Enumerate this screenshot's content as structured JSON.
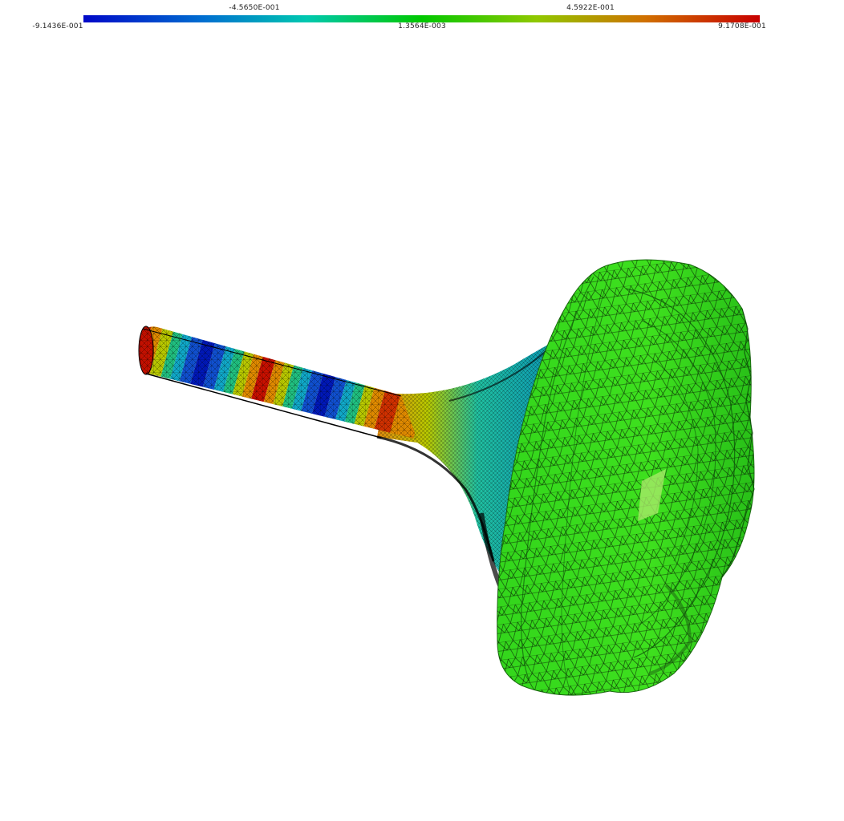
{
  "colorbar": {
    "colormap": [
      "#0008c8",
      "#0070d0",
      "#00c8b0",
      "#00c800",
      "#a0c800",
      "#d07000",
      "#c80000"
    ],
    "labels_top": [
      {
        "text": "-4.5650E-001"
      },
      {
        "text": "4.5922E-001"
      }
    ],
    "labels_bottom": [
      {
        "text": "-9.1436E-001"
      },
      {
        "text": "1.3564E-003"
      },
      {
        "text": "9.1708E-001"
      }
    ],
    "min": -0.91436,
    "max": 0.91708
  },
  "scene": {
    "description": "",
    "shaft_color_bands": 14,
    "disk_color": "#2ed62e",
    "mesh_color": "#000000"
  }
}
